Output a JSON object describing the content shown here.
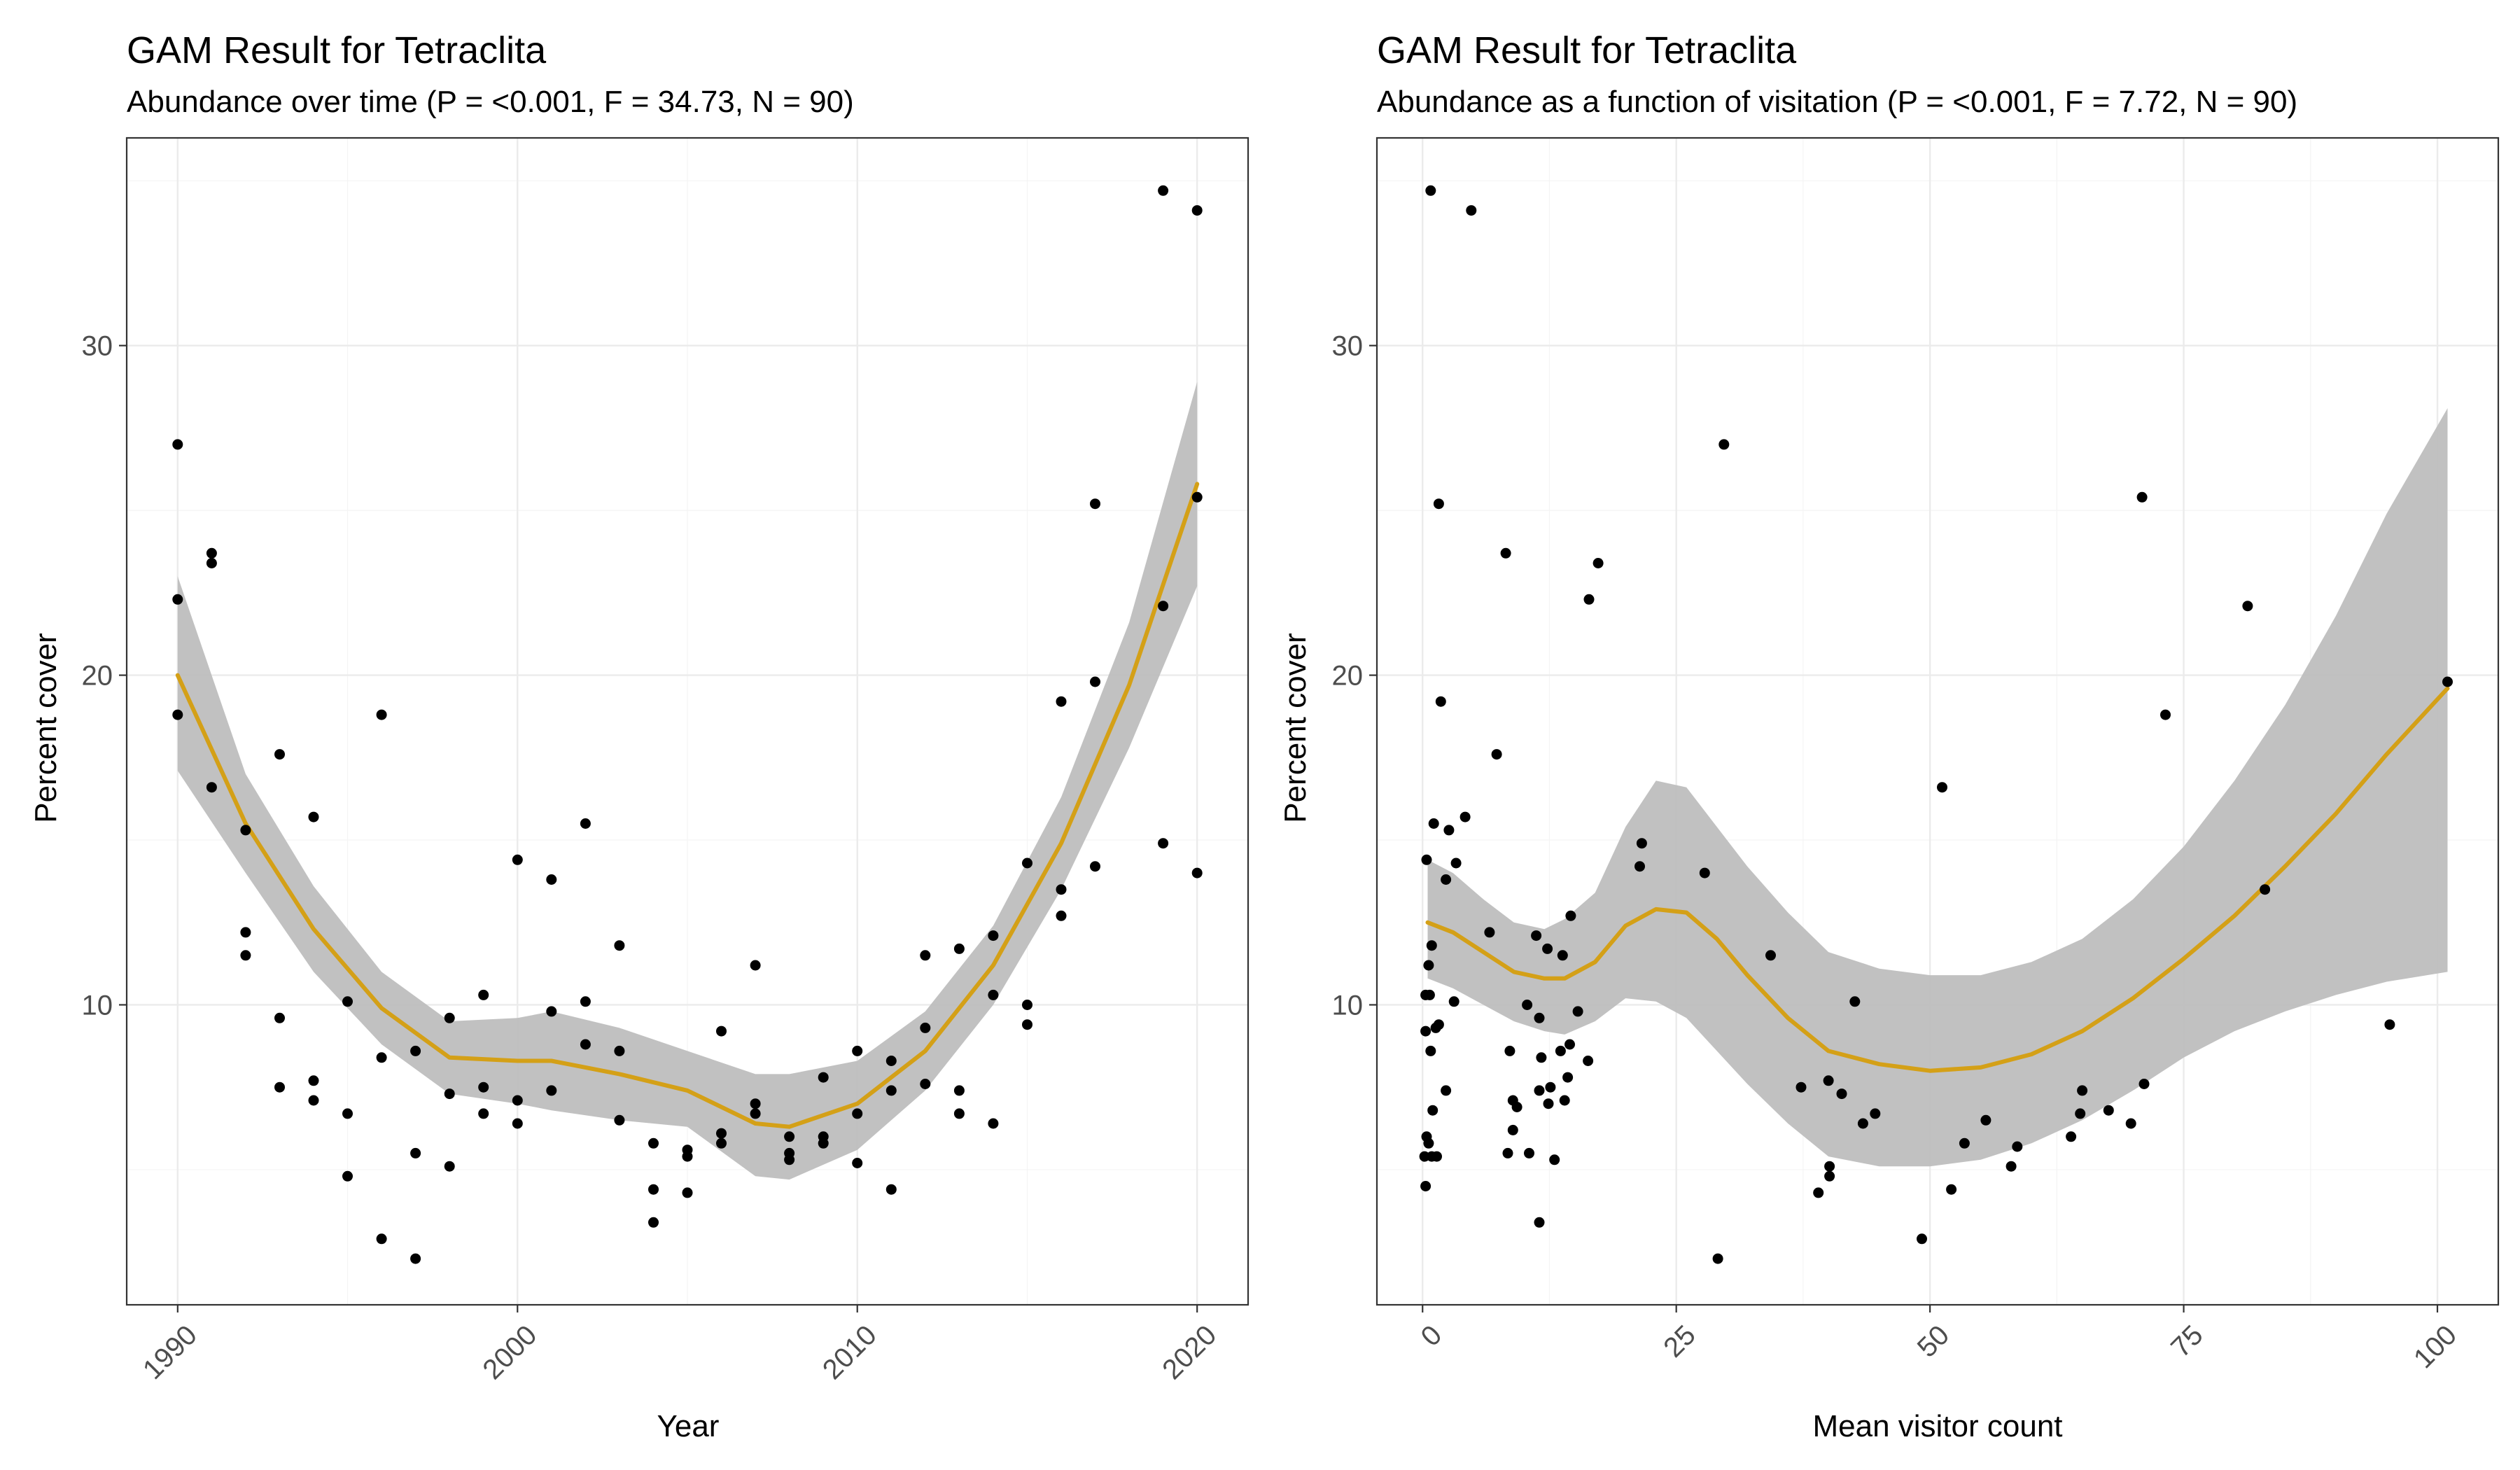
{
  "chart_data": [
    {
      "type": "scatter",
      "title": "GAM Result for Tetraclita",
      "subtitle": "Abundance over time (P = <0.001, F = 34.73, N = 90)",
      "xlabel": "Year",
      "ylabel": "Percent cover",
      "xlim": [
        1988.5,
        2021.5
      ],
      "ylim": [
        0.9,
        36.3
      ],
      "xticks": [
        1990,
        2000,
        2010,
        2020
      ],
      "xtick_labels": [
        "1990",
        "2000",
        "2010",
        "2020"
      ],
      "yticks": [
        10,
        20,
        30
      ],
      "ytick_labels": [
        "10",
        "20",
        "30"
      ],
      "grid": true,
      "colors": {
        "smooth": "#D4A017",
        "ribbon": "#BEBEBE",
        "points": "#000000"
      },
      "points": [
        [
          1990,
          27.0
        ],
        [
          1990,
          22.3
        ],
        [
          1990,
          18.8
        ],
        [
          1991,
          23.7
        ],
        [
          1991,
          23.4
        ],
        [
          1991,
          16.6
        ],
        [
          1992,
          15.3
        ],
        [
          1992,
          12.2
        ],
        [
          1992,
          11.5
        ],
        [
          1993,
          17.6
        ],
        [
          1993,
          9.6
        ],
        [
          1993,
          7.5
        ],
        [
          1994,
          15.7
        ],
        [
          1994,
          7.7
        ],
        [
          1994,
          7.1
        ],
        [
          1995,
          10.1
        ],
        [
          1995,
          6.7
        ],
        [
          1995,
          4.8
        ],
        [
          1996,
          18.8
        ],
        [
          1996,
          8.4
        ],
        [
          1996,
          2.9
        ],
        [
          1997,
          8.6
        ],
        [
          1997,
          5.5
        ],
        [
          1997,
          2.3
        ],
        [
          1998,
          9.6
        ],
        [
          1998,
          7.3
        ],
        [
          1998,
          5.1
        ],
        [
          1999,
          10.3
        ],
        [
          1999,
          7.5
        ],
        [
          1999,
          6.7
        ],
        [
          2000,
          14.4
        ],
        [
          2000,
          7.1
        ],
        [
          2000,
          6.4
        ],
        [
          2001,
          13.8
        ],
        [
          2001,
          9.8
        ],
        [
          2001,
          7.4
        ],
        [
          2002,
          15.5
        ],
        [
          2002,
          10.1
        ],
        [
          2002,
          8.8
        ],
        [
          2003,
          11.8
        ],
        [
          2003,
          8.6
        ],
        [
          2003,
          6.5
        ],
        [
          2004,
          5.8
        ],
        [
          2004,
          4.4
        ],
        [
          2004,
          3.4
        ],
        [
          2005,
          5.6
        ],
        [
          2005,
          5.4
        ],
        [
          2005,
          4.3
        ],
        [
          2006,
          9.2
        ],
        [
          2006,
          6.1
        ],
        [
          2006,
          5.8
        ],
        [
          2007,
          11.2
        ],
        [
          2007,
          7.0
        ],
        [
          2007,
          6.7
        ],
        [
          2008,
          6.0
        ],
        [
          2008,
          5.5
        ],
        [
          2008,
          5.3
        ],
        [
          2009,
          7.8
        ],
        [
          2009,
          6.0
        ],
        [
          2009,
          5.8
        ],
        [
          2010,
          8.6
        ],
        [
          2010,
          6.7
        ],
        [
          2010,
          5.2
        ],
        [
          2011,
          8.3
        ],
        [
          2011,
          7.4
        ],
        [
          2011,
          4.4
        ],
        [
          2012,
          11.5
        ],
        [
          2012,
          9.3
        ],
        [
          2012,
          7.6
        ],
        [
          2013,
          11.7
        ],
        [
          2013,
          7.4
        ],
        [
          2013,
          6.7
        ],
        [
          2014,
          12.1
        ],
        [
          2014,
          10.3
        ],
        [
          2014,
          6.4
        ],
        [
          2015,
          14.3
        ],
        [
          2015,
          10.0
        ],
        [
          2015,
          9.4
        ],
        [
          2016,
          19.2
        ],
        [
          2016,
          13.5
        ],
        [
          2016,
          12.7
        ],
        [
          2017,
          25.2
        ],
        [
          2017,
          19.8
        ],
        [
          2017,
          14.2
        ],
        [
          2019,
          34.7
        ],
        [
          2019,
          22.1
        ],
        [
          2019,
          14.9
        ],
        [
          2020,
          34.1
        ],
        [
          2020,
          25.4
        ],
        [
          2020,
          14.0
        ]
      ],
      "smooth": {
        "x": [
          1990,
          1992,
          1994,
          1996,
          1998,
          2000,
          2001,
          2003,
          2005,
          2007,
          2008,
          2010,
          2012,
          2014,
          2016,
          2018,
          2020
        ],
        "y": [
          20.0,
          15.5,
          12.3,
          9.9,
          8.4,
          8.3,
          8.3,
          7.9,
          7.4,
          6.4,
          6.3,
          7.0,
          8.6,
          11.2,
          14.9,
          19.7,
          25.8
        ],
        "lower": [
          17.1,
          14.0,
          11.0,
          8.8,
          7.3,
          7.0,
          6.8,
          6.5,
          6.3,
          4.8,
          4.7,
          5.6,
          7.4,
          10.0,
          13.5,
          17.8,
          22.7
        ],
        "upper": [
          23.0,
          17.0,
          13.6,
          11.0,
          9.5,
          9.6,
          9.8,
          9.3,
          8.6,
          7.9,
          7.9,
          8.3,
          9.8,
          12.4,
          16.3,
          21.6,
          28.9
        ]
      }
    },
    {
      "type": "scatter",
      "title": "GAM Result for Tetraclita",
      "subtitle": "Abundance as a function of visitation (P = <0.001, F = 7.72, N = 90)",
      "xlabel": "Mean visitor count",
      "ylabel": "Percent cover",
      "xlim": [
        -4.5,
        106
      ],
      "ylim": [
        0.9,
        36.3
      ],
      "xticks": [
        0,
        25,
        50,
        75,
        100
      ],
      "xtick_labels": [
        "0",
        "25",
        "50",
        "75",
        "100"
      ],
      "yticks": [
        10,
        20,
        30
      ],
      "ytick_labels": [
        "10",
        "20",
        "30"
      ],
      "grid": true,
      "colors": {
        "smooth": "#D4A017",
        "ribbon": "#BEBEBE",
        "points": "#000000"
      },
      "points": [
        [
          0.8,
          34.7
        ],
        [
          4.8,
          34.1
        ],
        [
          29.7,
          27.0
        ],
        [
          1.6,
          25.2
        ],
        [
          70.9,
          25.4
        ],
        [
          8.2,
          23.7
        ],
        [
          17.3,
          23.4
        ],
        [
          16.4,
          22.3
        ],
        [
          81.3,
          22.1
        ],
        [
          101.0,
          19.8
        ],
        [
          1.8,
          19.2
        ],
        [
          73.2,
          18.8
        ],
        [
          7.3,
          17.6
        ],
        [
          51.2,
          16.6
        ],
        [
          4.2,
          15.7
        ],
        [
          1.1,
          15.5
        ],
        [
          2.6,
          15.3
        ],
        [
          21.6,
          14.9
        ],
        [
          3.3,
          14.3
        ],
        [
          0.4,
          14.4
        ],
        [
          21.4,
          14.2
        ],
        [
          27.8,
          14.0
        ],
        [
          2.3,
          13.8
        ],
        [
          83.0,
          13.5
        ],
        [
          14.6,
          12.7
        ],
        [
          6.6,
          12.2
        ],
        [
          11.2,
          12.1
        ],
        [
          12.3,
          11.7
        ],
        [
          0.9,
          11.8
        ],
        [
          34.3,
          11.5
        ],
        [
          13.8,
          11.5
        ],
        [
          0.6,
          11.2
        ],
        [
          0.3,
          10.3
        ],
        [
          0.7,
          10.3
        ],
        [
          3.1,
          10.1
        ],
        [
          42.6,
          10.1
        ],
        [
          10.3,
          10.0
        ],
        [
          15.3,
          9.8
        ],
        [
          11.5,
          9.6
        ],
        [
          1.6,
          9.4
        ],
        [
          95.3,
          9.4
        ],
        [
          1.3,
          9.3
        ],
        [
          0.3,
          9.2
        ],
        [
          14.5,
          8.8
        ],
        [
          13.6,
          8.6
        ],
        [
          0.8,
          8.6
        ],
        [
          8.6,
          8.6
        ],
        [
          11.7,
          8.4
        ],
        [
          16.3,
          8.3
        ],
        [
          14.3,
          7.8
        ],
        [
          40.0,
          7.7
        ],
        [
          37.3,
          7.5
        ],
        [
          71.1,
          7.6
        ],
        [
          2.3,
          7.4
        ],
        [
          11.5,
          7.4
        ],
        [
          41.3,
          7.3
        ],
        [
          65.0,
          7.4
        ],
        [
          12.6,
          7.5
        ],
        [
          14.0,
          7.1
        ],
        [
          8.9,
          7.1
        ],
        [
          12.4,
          7.0
        ],
        [
          9.3,
          6.9
        ],
        [
          1.0,
          6.8
        ],
        [
          44.6,
          6.7
        ],
        [
          64.8,
          6.7
        ],
        [
          67.6,
          6.8
        ],
        [
          55.5,
          6.5
        ],
        [
          43.4,
          6.4
        ],
        [
          69.8,
          6.4
        ],
        [
          8.9,
          6.2
        ],
        [
          63.9,
          6.0
        ],
        [
          0.4,
          6.0
        ],
        [
          53.4,
          5.8
        ],
        [
          58.6,
          5.7
        ],
        [
          0.6,
          5.8
        ],
        [
          8.4,
          5.5
        ],
        [
          10.5,
          5.5
        ],
        [
          13.0,
          5.3
        ],
        [
          1.4,
          5.4
        ],
        [
          0.2,
          5.4
        ],
        [
          0.9,
          5.4
        ],
        [
          58.0,
          5.1
        ],
        [
          40.1,
          5.1
        ],
        [
          40.1,
          4.8
        ],
        [
          52.1,
          4.4
        ],
        [
          39.0,
          4.3
        ],
        [
          0.3,
          4.5
        ],
        [
          11.5,
          3.4
        ],
        [
          49.2,
          2.9
        ],
        [
          29.1,
          2.3
        ]
      ],
      "smooth": {
        "x": [
          0.5,
          3,
          6,
          9,
          12,
          14,
          17,
          20,
          23,
          26,
          29,
          32,
          36,
          40,
          45,
          50,
          55,
          60,
          65,
          70,
          75,
          80,
          85,
          90,
          95,
          101
        ],
        "y": [
          12.5,
          12.2,
          11.6,
          11.0,
          10.8,
          10.8,
          11.3,
          12.4,
          12.9,
          12.8,
          12.0,
          10.9,
          9.6,
          8.6,
          8.2,
          8.0,
          8.1,
          8.5,
          9.2,
          10.2,
          11.4,
          12.7,
          14.2,
          15.8,
          17.6,
          19.6
        ],
        "lower": [
          10.8,
          10.5,
          10.0,
          9.5,
          9.2,
          9.1,
          9.5,
          10.2,
          10.1,
          9.6,
          8.6,
          7.6,
          6.4,
          5.4,
          5.1,
          5.1,
          5.3,
          5.8,
          6.5,
          7.4,
          8.4,
          9.2,
          9.8,
          10.3,
          10.7,
          11.0
        ],
        "upper": [
          14.4,
          14.0,
          13.2,
          12.5,
          12.3,
          12.6,
          13.4,
          15.4,
          16.8,
          16.6,
          15.4,
          14.2,
          12.8,
          11.6,
          11.1,
          10.9,
          10.9,
          11.3,
          12.0,
          13.2,
          14.8,
          16.8,
          19.1,
          21.8,
          24.9,
          28.1
        ]
      }
    }
  ]
}
